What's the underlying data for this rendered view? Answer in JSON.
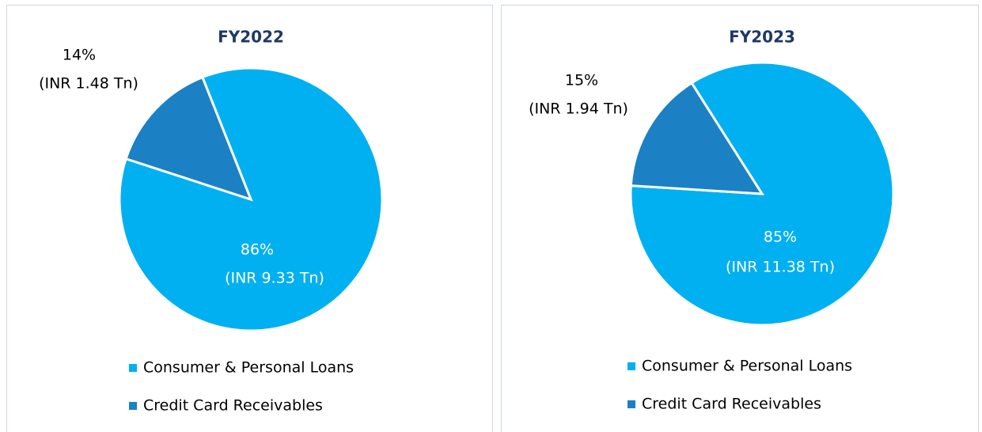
{
  "chart_data": [
    {
      "type": "pie",
      "title": "FY2022",
      "categories": [
        "Consumer & Personal Loans",
        "Credit Card Receivables"
      ],
      "values": [
        86,
        14
      ],
      "value_labels": [
        "86%",
        "14%"
      ],
      "amount_labels": [
        "(INR 9.33 Tn)",
        "(INR 1.48 Tn)"
      ],
      "colors": [
        "#00b0f0",
        "#1b80c4"
      ],
      "legend": "bottom"
    },
    {
      "type": "pie",
      "title": "FY2023",
      "categories": [
        "Consumer & Personal Loans",
        "Credit Card Receivables"
      ],
      "values": [
        85,
        15
      ],
      "value_labels": [
        "85%",
        "15%"
      ],
      "amount_labels": [
        "(INR 11.38 Tn)",
        "(INR 1.94 Tn)"
      ],
      "colors": [
        "#00b0f0",
        "#1b80c4"
      ],
      "legend": "bottom"
    }
  ]
}
